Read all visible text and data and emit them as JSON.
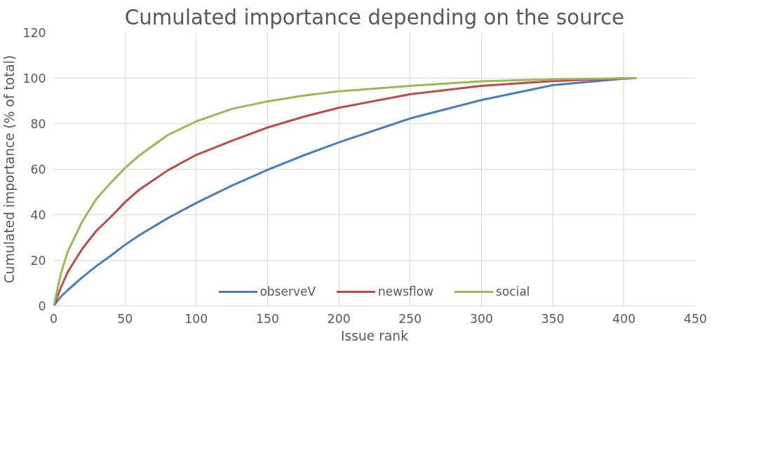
{
  "chart_data": {
    "type": "line",
    "title": "Cumulated importance depending on the source",
    "xlabel": "Issue rank",
    "ylabel": "Cumulated importance (% of total)",
    "xlim": [
      0,
      450
    ],
    "xticks": [
      0,
      50,
      100,
      150,
      200,
      250,
      300,
      350,
      400,
      450
    ],
    "ylim": [
      0,
      120
    ],
    "yticks": [
      0,
      20,
      40,
      60,
      80,
      100,
      120
    ],
    "grid": true,
    "legend": "bottom",
    "marker": "none",
    "line_style": "solid",
    "series": [
      {
        "name": "observeV",
        "color": "#4a7ebb",
        "x": [
          0,
          5,
          10,
          20,
          30,
          40,
          50,
          60,
          80,
          100,
          125,
          150,
          175,
          200,
          250,
          300,
          350,
          400,
          408
        ],
        "values": [
          0,
          4,
          7,
          12.5,
          17.5,
          22,
          26.8,
          31,
          38.5,
          45.2,
          52.8,
          59.7,
          66,
          71.8,
          82.3,
          90.4,
          96.9,
          99.8,
          100
        ]
      },
      {
        "name": "newsflow",
        "color": "#be4b48",
        "x": [
          0,
          5,
          10,
          20,
          30,
          40,
          50,
          60,
          80,
          100,
          125,
          150,
          175,
          200,
          250,
          300,
          350,
          400,
          408
        ],
        "values": [
          0,
          8,
          15,
          25,
          33,
          39,
          45.5,
          51,
          59.5,
          66.3,
          72.5,
          78.3,
          83,
          87,
          92.9,
          96.6,
          98.7,
          99.9,
          100
        ]
      },
      {
        "name": "social",
        "color": "#98b954",
        "x": [
          0,
          5,
          10,
          20,
          30,
          40,
          50,
          60,
          80,
          100,
          125,
          150,
          175,
          200,
          250,
          300,
          350,
          400,
          408
        ],
        "values": [
          0,
          14,
          24,
          37,
          47,
          54,
          60.5,
          66,
          75,
          81,
          86.5,
          89.8,
          92.3,
          94.2,
          96.6,
          98.6,
          99.5,
          99.9,
          100
        ]
      }
    ]
  }
}
